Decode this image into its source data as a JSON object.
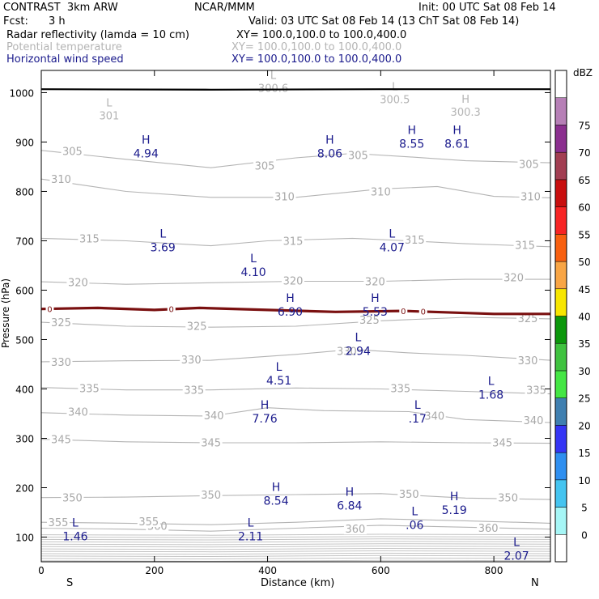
{
  "header": {
    "model": "CONTRAST  3km ARW",
    "org": "NCAR/MMM",
    "init": "Init: 00 UTC Sat 08 Feb 14",
    "fcst_label": "Fcst:",
    "fcst_value": "3 h",
    "valid": "Valid: 03 UTC Sat 08 Feb 14 (13 ChT Sat 08 Feb 14)",
    "fields": [
      {
        "name": "Radar reflectivity (lamda = 10 cm)",
        "xy": "XY= 100.0,100.0 to 100.0,400.0",
        "color": "#000000"
      },
      {
        "name": "Potential temperature",
        "xy": "XY= 100.0,100.0 to 100.0,400.0",
        "color": "#b4b4b4"
      },
      {
        "name": "Horizontal wind speed",
        "xy": "XY= 100.0,100.0 to 100.0,400.0",
        "color": "#1a1a8c"
      }
    ]
  },
  "chart_data": {
    "type": "cross-section",
    "title": "Radar reflectivity / Potential temperature / Horizontal wind speed",
    "xlabel": "Distance (km)",
    "ylabel": "Pressure (hPa)",
    "xlim": [
      0,
      900
    ],
    "ylim": [
      1045,
      50
    ],
    "x_ticks": [
      0,
      200,
      400,
      600,
      800
    ],
    "y_ticks": [
      100,
      200,
      300,
      400,
      500,
      600,
      700,
      800,
      900,
      1000
    ],
    "x_end_labels": {
      "left": "S",
      "right": "N"
    },
    "theta_contours": [
      {
        "value": 360,
        "points": [
          [
            0,
            118
          ],
          [
            150,
            116
          ],
          [
            300,
            112
          ],
          [
            450,
            118
          ],
          [
            600,
            124
          ],
          [
            750,
            120
          ],
          [
            900,
            116
          ]
        ],
        "labels": [
          [
            205,
            123
          ],
          [
            555,
            117
          ],
          [
            790,
            119
          ]
        ]
      },
      {
        "value": 355,
        "points": [
          [
            0,
            130
          ],
          [
            150,
            128
          ],
          [
            300,
            125
          ],
          [
            450,
            130
          ],
          [
            600,
            137
          ],
          [
            750,
            133
          ],
          [
            900,
            128
          ]
        ],
        "labels": [
          [
            30,
            130
          ],
          [
            190,
            132
          ]
        ]
      },
      {
        "value": 350,
        "points": [
          [
            0,
            180
          ],
          [
            150,
            181
          ],
          [
            300,
            184
          ],
          [
            450,
            186
          ],
          [
            600,
            188
          ],
          [
            750,
            179
          ],
          [
            900,
            176
          ]
        ],
        "labels": [
          [
            55,
            180
          ],
          [
            300,
            186
          ],
          [
            650,
            188
          ],
          [
            825,
            180
          ]
        ]
      },
      {
        "value": 345,
        "points": [
          [
            0,
            298
          ],
          [
            150,
            293
          ],
          [
            300,
            291
          ],
          [
            450,
            291
          ],
          [
            600,
            293
          ],
          [
            750,
            291
          ],
          [
            900,
            290
          ]
        ],
        "labels": [
          [
            35,
            298
          ],
          [
            300,
            292
          ],
          [
            815,
            292
          ]
        ]
      },
      {
        "value": 340,
        "points": [
          [
            0,
            352
          ],
          [
            150,
            347
          ],
          [
            300,
            345
          ],
          [
            400,
            362
          ],
          [
            500,
            356
          ],
          [
            650,
            354
          ],
          [
            750,
            338
          ],
          [
            900,
            332
          ]
        ],
        "labels": [
          [
            65,
            354
          ],
          [
            305,
            347
          ],
          [
            695,
            346
          ],
          [
            870,
            337
          ]
        ]
      },
      {
        "value": 335,
        "points": [
          [
            0,
            403
          ],
          [
            150,
            398
          ],
          [
            300,
            398
          ],
          [
            450,
            402
          ],
          [
            600,
            400
          ],
          [
            750,
            395
          ],
          [
            900,
            390
          ]
        ],
        "labels": [
          [
            85,
            402
          ],
          [
            270,
            398
          ],
          [
            635,
            402
          ],
          [
            875,
            398
          ]
        ]
      },
      {
        "value": 330,
        "points": [
          [
            0,
            455
          ],
          [
            150,
            457
          ],
          [
            300,
            458
          ],
          [
            450,
            470
          ],
          [
            550,
            480
          ],
          [
            650,
            473
          ],
          [
            750,
            468
          ],
          [
            900,
            458
          ]
        ],
        "labels": [
          [
            35,
            455
          ],
          [
            265,
            460
          ],
          [
            540,
            477
          ],
          [
            860,
            458
          ]
        ]
      },
      {
        "value": 325,
        "points": [
          [
            0,
            535
          ],
          [
            150,
            527
          ],
          [
            300,
            525
          ],
          [
            450,
            527
          ],
          [
            600,
            538
          ],
          [
            750,
            545
          ],
          [
            900,
            542
          ]
        ],
        "labels": [
          [
            35,
            535
          ],
          [
            275,
            528
          ],
          [
            580,
            540
          ],
          [
            860,
            543
          ]
        ]
      },
      {
        "value": 320,
        "points": [
          [
            0,
            617
          ],
          [
            150,
            612
          ],
          [
            300,
            615
          ],
          [
            450,
            618
          ],
          [
            600,
            618
          ],
          [
            750,
            622
          ],
          [
            900,
            622
          ]
        ],
        "labels": [
          [
            65,
            616
          ],
          [
            445,
            620
          ],
          [
            590,
            618
          ],
          [
            835,
            626
          ]
        ]
      },
      {
        "value": 315,
        "points": [
          [
            0,
            705
          ],
          [
            150,
            700
          ],
          [
            300,
            690
          ],
          [
            400,
            700
          ],
          [
            550,
            705
          ],
          [
            650,
            700
          ],
          [
            750,
            694
          ],
          [
            900,
            688
          ]
        ],
        "labels": [
          [
            85,
            705
          ],
          [
            445,
            700
          ],
          [
            660,
            702
          ],
          [
            855,
            692
          ]
        ]
      },
      {
        "value": 310,
        "points": [
          [
            0,
            825
          ],
          [
            150,
            800
          ],
          [
            300,
            788
          ],
          [
            450,
            788
          ],
          [
            600,
            805
          ],
          [
            700,
            810
          ],
          [
            800,
            790
          ],
          [
            900,
            787
          ]
        ],
        "labels": [
          [
            35,
            825
          ],
          [
            430,
            790
          ],
          [
            600,
            800
          ],
          [
            865,
            790
          ]
        ]
      },
      {
        "value": 305,
        "points": [
          [
            0,
            883
          ],
          [
            150,
            865
          ],
          [
            300,
            848
          ],
          [
            450,
            868
          ],
          [
            550,
            877
          ],
          [
            650,
            870
          ],
          [
            750,
            862
          ],
          [
            900,
            858
          ]
        ],
        "labels": [
          [
            55,
            882
          ],
          [
            395,
            852
          ],
          [
            560,
            874
          ],
          [
            862,
            856
          ]
        ]
      }
    ],
    "surface_extremes": [
      {
        "label": "L",
        "value": "301",
        "x": 120,
        "p": 962,
        "color": "#b4b4b4"
      },
      {
        "label": "L",
        "value": "300.5",
        "x": 625,
        "p": 995,
        "color": "#b4b4b4"
      },
      {
        "label": "L",
        "value": "300.6",
        "x": 410,
        "p": 1018,
        "color": "#b4b4b4"
      },
      {
        "label": "H",
        "value": "300.3",
        "x": 750,
        "p": 970,
        "color": "#b4b4b4"
      }
    ],
    "freezing_level": {
      "value": 0,
      "color": "#7a1010",
      "points": [
        [
          0,
          562
        ],
        [
          100,
          564
        ],
        [
          200,
          560
        ],
        [
          280,
          564
        ],
        [
          400,
          560
        ],
        [
          520,
          556
        ],
        [
          640,
          558
        ],
        [
          800,
          552
        ],
        [
          900,
          552
        ]
      ],
      "labels": [
        [
          15,
          562
        ],
        [
          230,
          562
        ],
        [
          640,
          558
        ],
        [
          675,
          557
        ]
      ]
    },
    "wind_speed_extremes": [
      {
        "label": "L",
        "value": "1.46",
        "x": 60,
        "p": 115
      },
      {
        "label": "L",
        "value": "2.11",
        "x": 370,
        "p": 115
      },
      {
        "label": "L",
        "value": "2.07",
        "x": 840,
        "p": 75
      },
      {
        "label": "L",
        "value": ".06",
        "x": 660,
        "p": 138
      },
      {
        "label": "H",
        "value": "5.19",
        "x": 730,
        "p": 168
      },
      {
        "label": "H",
        "value": "8.54",
        "x": 415,
        "p": 187
      },
      {
        "label": "H",
        "value": "6.84",
        "x": 545,
        "p": 177
      },
      {
        "label": "H",
        "value": "7.76",
        "x": 395,
        "p": 353
      },
      {
        "label": "L",
        "value": ".17",
        "x": 665,
        "p": 353
      },
      {
        "label": "L",
        "value": "1.68",
        "x": 795,
        "p": 402
      },
      {
        "label": "L",
        "value": "4.51",
        "x": 420,
        "p": 430
      },
      {
        "label": "L",
        "value": "2.94",
        "x": 560,
        "p": 490
      },
      {
        "label": "H",
        "value": "6.90",
        "x": 440,
        "p": 570
      },
      {
        "label": "H",
        "value": "5.53",
        "x": 590,
        "p": 570
      },
      {
        "label": "L",
        "value": "4.10",
        "x": 375,
        "p": 650
      },
      {
        "label": "L",
        "value": "3.69",
        "x": 215,
        "p": 700
      },
      {
        "label": "L",
        "value": "4.07",
        "x": 620,
        "p": 700
      },
      {
        "label": "H",
        "value": "4.94",
        "x": 185,
        "p": 890
      },
      {
        "label": "H",
        "value": "8.06",
        "x": 510,
        "p": 890
      },
      {
        "label": "H",
        "value": "8.55",
        "x": 655,
        "p": 910
      },
      {
        "label": "H",
        "value": "8.61",
        "x": 735,
        "p": 910
      }
    ],
    "terrain_p": 1007,
    "colorbar": {
      "title": "dBZ",
      "levels": [
        0,
        5,
        10,
        15,
        20,
        25,
        30,
        35,
        40,
        45,
        50,
        55,
        60,
        65,
        70,
        75
      ],
      "colors": [
        "#ffffff",
        "#a6f6f6",
        "#44c4f0",
        "#2f8ff0",
        "#3535f5",
        "#3f7fb0",
        "#44e644",
        "#3fc23f",
        "#0b970b",
        "#f7e600",
        "#f8a545",
        "#f86010",
        "#f72424",
        "#c80e0e",
        "#a23e52",
        "#8b2f8f",
        "#b67fb6",
        "#ffffff"
      ]
    }
  }
}
